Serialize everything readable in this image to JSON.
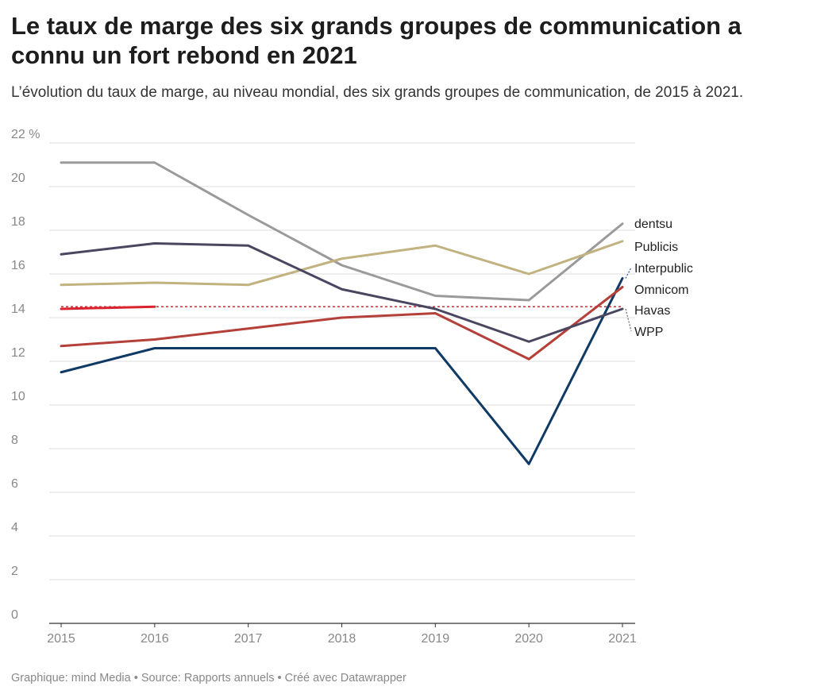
{
  "title": "Le taux de marge des six grands groupes de communication a connu un fort rebond en 2021",
  "subtitle": "L’évolution du taux de marge, au niveau mondial, des six grands groupes de communication, de 2015 à 2021.",
  "footer": "Graphique: mind Media • Source: Rapports annuels • Créé avec Datawrapper",
  "chart_data": {
    "type": "line",
    "x": [
      2015,
      2016,
      2017,
      2018,
      2019,
      2020,
      2021
    ],
    "x_tick_labels": [
      "2015",
      "2016",
      "2017",
      "2018",
      "2019",
      "2020",
      "2021"
    ],
    "ylim": [
      0,
      22
    ],
    "y_ticks": [
      0,
      2,
      4,
      6,
      8,
      10,
      12,
      14,
      16,
      18,
      20,
      22
    ],
    "y_tick_labels": [
      "0",
      "2",
      "4",
      "6",
      "8",
      "10",
      "12",
      "14",
      "16",
      "18",
      "20",
      "22 %"
    ],
    "grid": true,
    "legend": "direct labels at line ends (right)",
    "series": [
      {
        "name": "dentsu",
        "color": "#9a9a9a",
        "values": [
          21.1,
          21.1,
          18.7,
          16.4,
          15.0,
          14.8,
          18.3
        ]
      },
      {
        "name": "Publicis",
        "color": "#c2b280",
        "values": [
          15.5,
          15.6,
          15.5,
          16.7,
          17.3,
          16.0,
          17.5
        ]
      },
      {
        "name": "Interpublic",
        "color": "#0f3a66",
        "values": [
          11.5,
          12.6,
          12.6,
          12.6,
          12.6,
          7.3,
          15.8
        ]
      },
      {
        "name": "Omnicom",
        "color": "#b5403a",
        "values": [
          12.7,
          13.0,
          13.5,
          14.0,
          14.2,
          12.1,
          15.4
        ]
      },
      {
        "name": "Havas",
        "color": "#d9232e",
        "values": [
          14.4,
          14.5,
          null,
          null,
          null,
          null,
          null
        ],
        "reference_line": 14.5
      },
      {
        "name": "WPP",
        "color": "#4a4660",
        "values": [
          16.9,
          17.4,
          17.3,
          15.3,
          14.4,
          12.9,
          14.4
        ]
      }
    ]
  }
}
